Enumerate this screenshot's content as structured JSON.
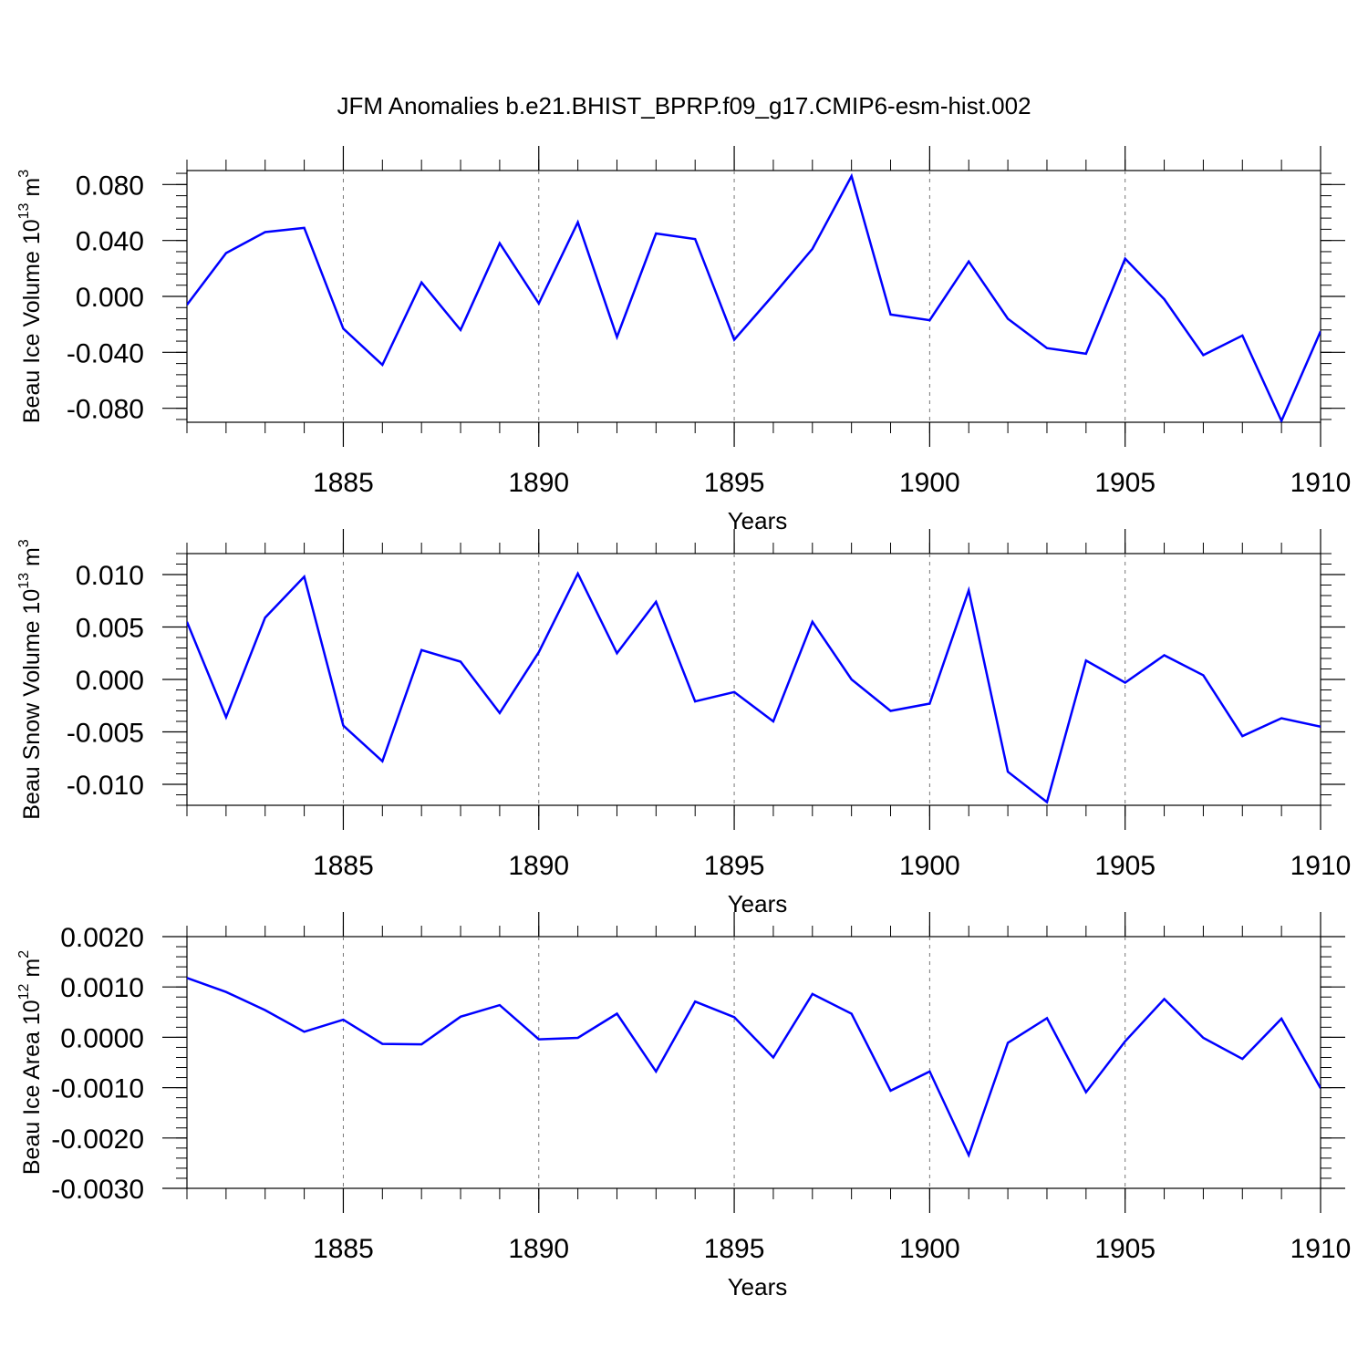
{
  "title": "JFM Anomalies b.e21.BHIST_BPRP.f09_g17.CMIP6-esm-hist.002",
  "chart_data": [
    {
      "type": "line",
      "title": "",
      "xlabel": "Years",
      "ylabel_main": "Beau Ice Volume 10",
      "ylabel_exp": "13",
      "ylabel_unit": " m",
      "ylabel_unit_exp": "3",
      "xlim": [
        1881,
        1910
      ],
      "ylim": [
        -0.09,
        0.09
      ],
      "x_ticks": [
        1885,
        1890,
        1895,
        1900,
        1905,
        1910
      ],
      "x_tick_labels": [
        "1885",
        "1890",
        "1895",
        "1900",
        "1905",
        "1910"
      ],
      "y_ticks": [
        0.08,
        0.04,
        0.0,
        -0.04,
        -0.08
      ],
      "y_tick_labels": [
        "0.080",
        "0.040",
        "0.000",
        "-0.040",
        "-0.080"
      ],
      "grid": "vertical dashed at major x ticks",
      "line_color": "#0000ff",
      "series": [
        {
          "x": [
            1881,
            1882,
            1883,
            1884,
            1885,
            1886,
            1887,
            1888,
            1889,
            1890,
            1891,
            1892,
            1893,
            1894,
            1895,
            1896,
            1897,
            1898,
            1899,
            1900,
            1901,
            1902,
            1903,
            1904,
            1905,
            1906,
            1907,
            1908,
            1909,
            1910
          ],
          "values": [
            -0.006,
            0.031,
            0.046,
            0.049,
            -0.023,
            -0.049,
            0.01,
            -0.024,
            0.038,
            -0.005,
            0.053,
            -0.029,
            0.045,
            0.041,
            -0.031,
            0.001,
            0.034,
            0.086,
            -0.013,
            -0.017,
            0.025,
            -0.016,
            -0.037,
            -0.041,
            0.027,
            -0.002,
            -0.042,
            -0.028,
            -0.089,
            -0.025
          ]
        }
      ]
    },
    {
      "type": "line",
      "title": "",
      "xlabel": "Years",
      "ylabel_main": "Beau Snow Volume 10",
      "ylabel_exp": "13",
      "ylabel_unit": " m",
      "ylabel_unit_exp": "3",
      "xlim": [
        1881,
        1910
      ],
      "ylim": [
        -0.012,
        0.012
      ],
      "x_ticks": [
        1885,
        1890,
        1895,
        1900,
        1905,
        1910
      ],
      "x_tick_labels": [
        "1885",
        "1890",
        "1895",
        "1900",
        "1905",
        "1910"
      ],
      "y_ticks": [
        0.01,
        0.005,
        0.0,
        -0.005,
        -0.01
      ],
      "y_tick_labels": [
        "0.010",
        "0.005",
        "0.000",
        "-0.005",
        "-0.010"
      ],
      "grid": "vertical dashed at major x ticks",
      "line_color": "#0000ff",
      "series": [
        {
          "x": [
            1881,
            1882,
            1883,
            1884,
            1885,
            1886,
            1887,
            1888,
            1889,
            1890,
            1891,
            1892,
            1893,
            1894,
            1895,
            1896,
            1897,
            1898,
            1899,
            1900,
            1901,
            1902,
            1903,
            1904,
            1905,
            1906,
            1907,
            1908,
            1909,
            1910
          ],
          "values": [
            0.0055,
            -0.0036,
            0.0059,
            0.0098,
            -0.0044,
            -0.0078,
            0.0028,
            0.0017,
            -0.0032,
            0.0026,
            0.0101,
            0.0025,
            0.0074,
            -0.0021,
            -0.0012,
            -0.004,
            0.0055,
            0.0,
            -0.003,
            -0.0023,
            0.0085,
            -0.0088,
            -0.0117,
            0.0018,
            -0.0003,
            0.0023,
            0.0004,
            -0.0054,
            -0.0037,
            -0.0045
          ]
        }
      ]
    },
    {
      "type": "line",
      "title": "",
      "xlabel": "Years",
      "ylabel_main": "Beau Ice Area 10",
      "ylabel_exp": "12",
      "ylabel_unit": " m",
      "ylabel_unit_exp": "2",
      "xlim": [
        1881,
        1910
      ],
      "ylim": [
        -0.003,
        0.002
      ],
      "x_ticks": [
        1885,
        1890,
        1895,
        1900,
        1905,
        1910
      ],
      "x_tick_labels": [
        "1885",
        "1890",
        "1895",
        "1900",
        "1905",
        "1910"
      ],
      "y_ticks": [
        0.002,
        0.001,
        0.0,
        -0.001,
        -0.002,
        -0.003
      ],
      "y_tick_labels": [
        "0.0020",
        "0.0010",
        "0.0000",
        "-0.0010",
        "-0.0020",
        "-0.0030"
      ],
      "grid": "vertical dashed at major x ticks",
      "line_color": "#0000ff",
      "series": [
        {
          "x": [
            1881,
            1882,
            1883,
            1884,
            1885,
            1886,
            1887,
            1888,
            1889,
            1890,
            1891,
            1892,
            1893,
            1894,
            1895,
            1896,
            1897,
            1898,
            1899,
            1900,
            1901,
            1902,
            1903,
            1904,
            1905,
            1906,
            1907,
            1908,
            1909,
            1910
          ],
          "values": [
            0.00118,
            0.0009,
            0.00054,
            0.00011,
            0.00035,
            -0.00013,
            -0.00014,
            0.00041,
            0.00064,
            -4e-05,
            -1e-05,
            0.00047,
            -0.00068,
            0.00071,
            0.0004,
            -0.0004,
            0.00086,
            0.00047,
            -0.00106,
            -0.00068,
            -0.00234,
            -0.00011,
            0.00038,
            -0.00109,
            -8e-05,
            0.00076,
            -1e-05,
            -0.00043,
            0.00037,
            -0.00101
          ]
        }
      ]
    }
  ]
}
